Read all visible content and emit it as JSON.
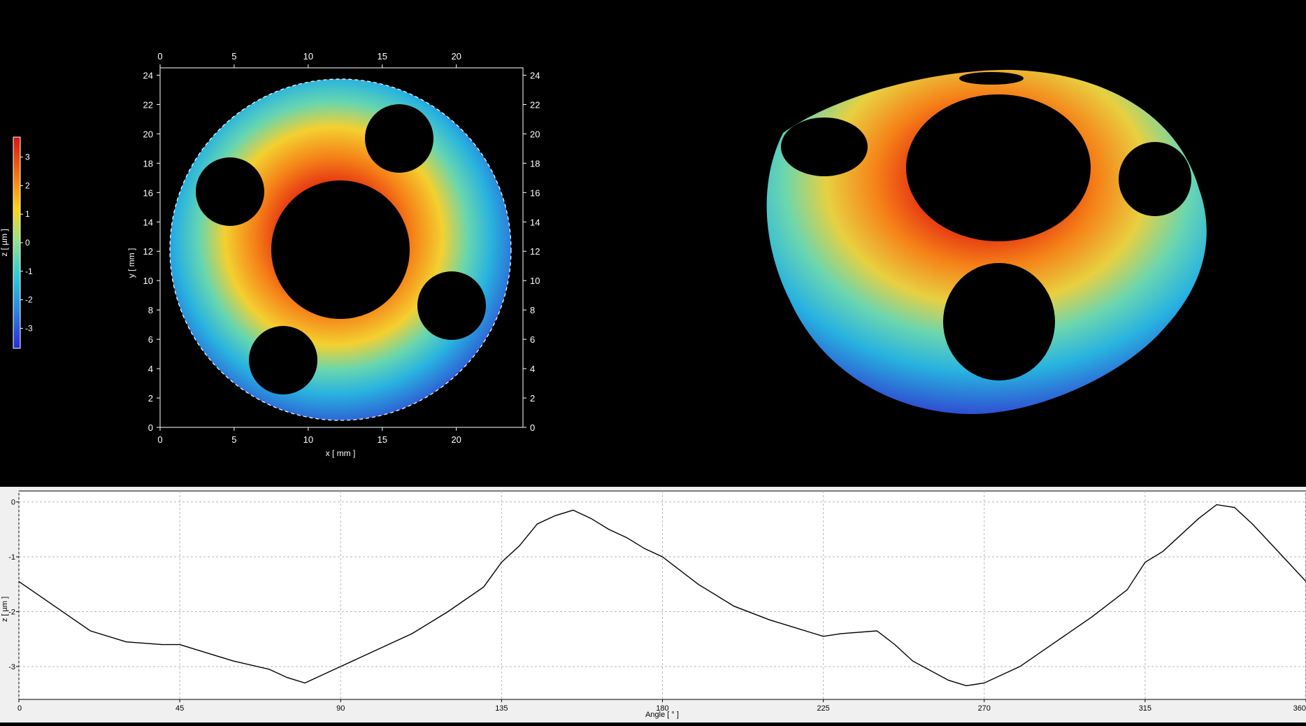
{
  "colorbar": {
    "label": "z [ µm ]",
    "ticks": [
      "3",
      "2",
      "1",
      "0",
      "-1",
      "-2",
      "-3"
    ],
    "min": -3.7,
    "max": 3.7
  },
  "map2d": {
    "xlabel": "x [ mm ]",
    "ylabel": "y [ mm ]",
    "xlim": [
      0,
      24.5
    ],
    "ylim": [
      0,
      24.5
    ],
    "x_ticks": [
      "0",
      "5",
      "10",
      "15",
      "20"
    ],
    "y_ticks": [
      "0",
      "2",
      "4",
      "6",
      "8",
      "10",
      "12",
      "14",
      "16",
      "18",
      "20",
      "22",
      "24"
    ]
  },
  "chart_data": {
    "type": "line",
    "title": "",
    "xlabel": "Angle [ ° ]",
    "ylabel": "z [ µm ]",
    "xlim": [
      0,
      360
    ],
    "ylim": [
      -3.6,
      0.2
    ],
    "x_ticks": [
      "0",
      "45",
      "90",
      "135",
      "180",
      "225",
      "270",
      "315",
      "360"
    ],
    "y_ticks": [
      "0",
      "-1",
      "-2",
      "-3"
    ],
    "grid": true,
    "x": [
      0,
      10,
      20,
      30,
      40,
      45,
      55,
      60,
      70,
      75,
      80,
      90,
      100,
      110,
      120,
      130,
      135,
      140,
      145,
      150,
      155,
      160,
      165,
      170,
      175,
      180,
      190,
      200,
      210,
      220,
      225,
      230,
      240,
      245,
      250,
      260,
      265,
      270,
      280,
      290,
      300,
      310,
      315,
      320,
      325,
      330,
      335,
      340,
      345,
      350,
      355,
      360
    ],
    "y": [
      -1.45,
      -1.9,
      -2.35,
      -2.55,
      -2.6,
      -2.6,
      -2.8,
      -2.9,
      -3.05,
      -3.2,
      -3.3,
      -3.0,
      -2.7,
      -2.4,
      -2.0,
      -1.55,
      -1.1,
      -0.8,
      -0.4,
      -0.25,
      -0.15,
      -0.3,
      -0.5,
      -0.65,
      -0.85,
      -1.0,
      -1.5,
      -1.9,
      -2.15,
      -2.35,
      -2.45,
      -2.4,
      -2.35,
      -2.6,
      -2.9,
      -3.25,
      -3.35,
      -3.3,
      -3.0,
      -2.55,
      -2.1,
      -1.6,
      -1.1,
      -0.9,
      -0.6,
      -0.3,
      -0.05,
      -0.1,
      -0.4,
      -0.75,
      -1.1,
      -1.45
    ]
  }
}
